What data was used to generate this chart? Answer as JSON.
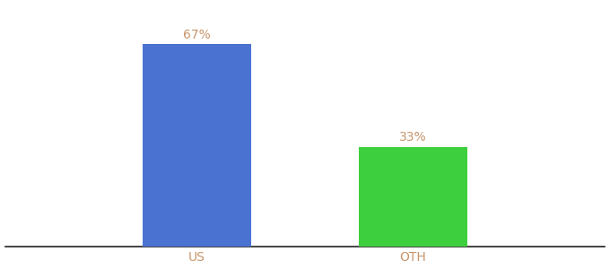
{
  "categories": [
    "US",
    "OTH"
  ],
  "values": [
    67,
    33
  ],
  "bar_colors": [
    "#4a72d1",
    "#3ecf3e"
  ],
  "label_texts": [
    "67%",
    "33%"
  ],
  "label_color": "#c8956a",
  "tick_label_color": "#c8956a",
  "ylim": [
    0,
    80
  ],
  "background_color": "#ffffff",
  "bar_width": 0.18,
  "x_positions": [
    0.32,
    0.68
  ],
  "xlim": [
    0.0,
    1.0
  ],
  "figsize": [
    6.8,
    3.0
  ],
  "dpi": 100,
  "label_fontsize": 10,
  "tick_fontsize": 10
}
